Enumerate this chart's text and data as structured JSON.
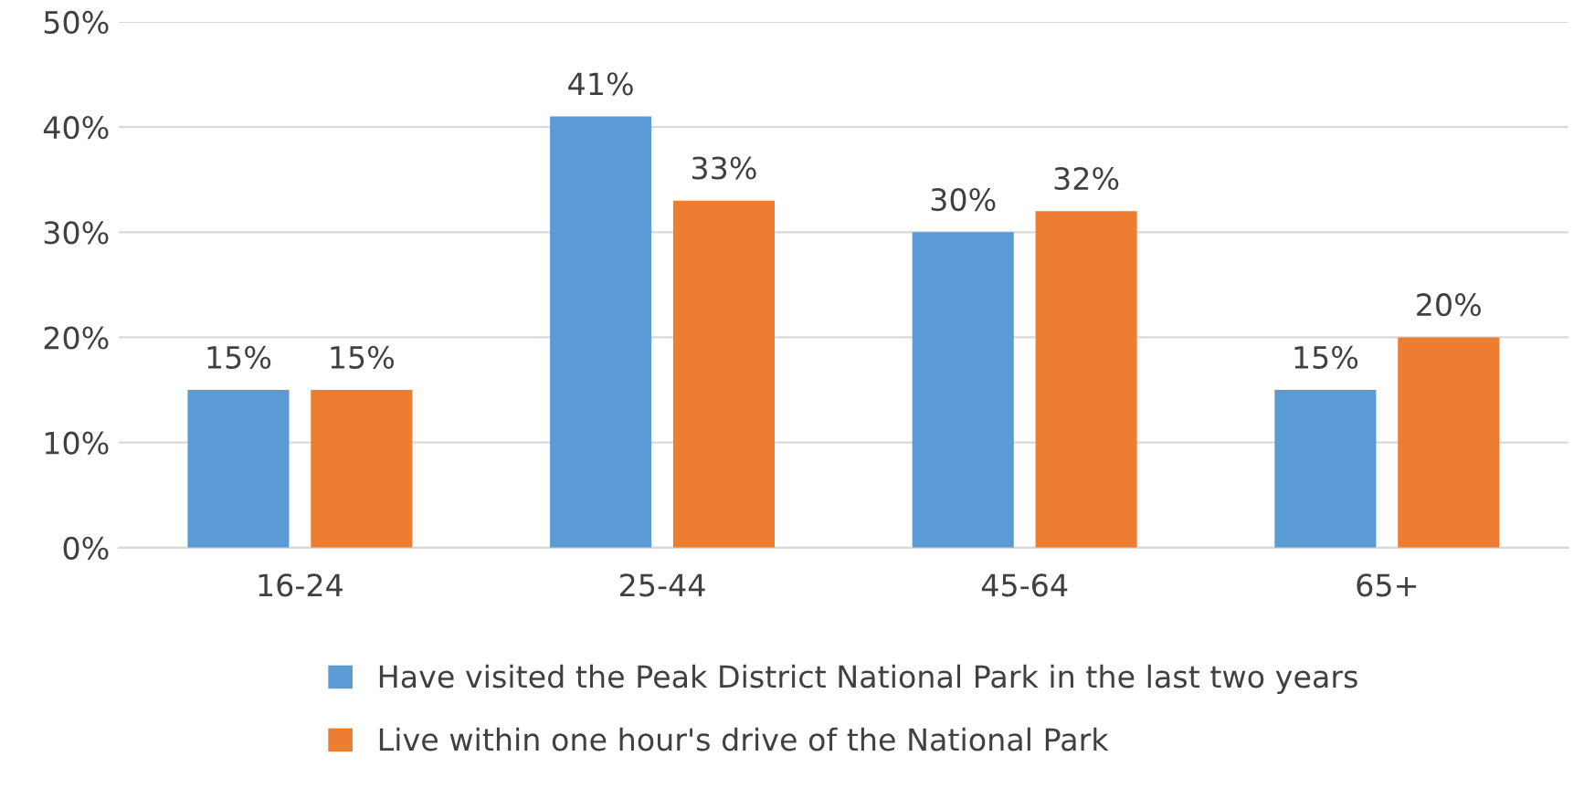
{
  "chart_data": {
    "type": "bar",
    "categories": [
      "16-24",
      "25-44",
      "45-64",
      "65+"
    ],
    "series": [
      {
        "name": "Have visited the Peak District National Park in the last two years",
        "color": "#5b9bd5",
        "values": [
          15,
          41,
          30,
          15
        ],
        "value_labels": [
          "15%",
          "41%",
          "30%",
          "15%"
        ]
      },
      {
        "name": "Live within one hour's drive of the National Park",
        "color": "#ed7d31",
        "values": [
          15,
          33,
          32,
          20
        ],
        "value_labels": [
          "15%",
          "33%",
          "32%",
          "20%"
        ]
      }
    ],
    "ylim": [
      0,
      50
    ],
    "yticks": [
      {
        "value": 0,
        "label": "0%"
      },
      {
        "value": 10,
        "label": "10%"
      },
      {
        "value": 20,
        "label": "20%"
      },
      {
        "value": 30,
        "label": "30%"
      },
      {
        "value": 40,
        "label": "40%"
      },
      {
        "value": 50,
        "label": "50%"
      }
    ],
    "grid": "y",
    "legend": "bottom"
  }
}
